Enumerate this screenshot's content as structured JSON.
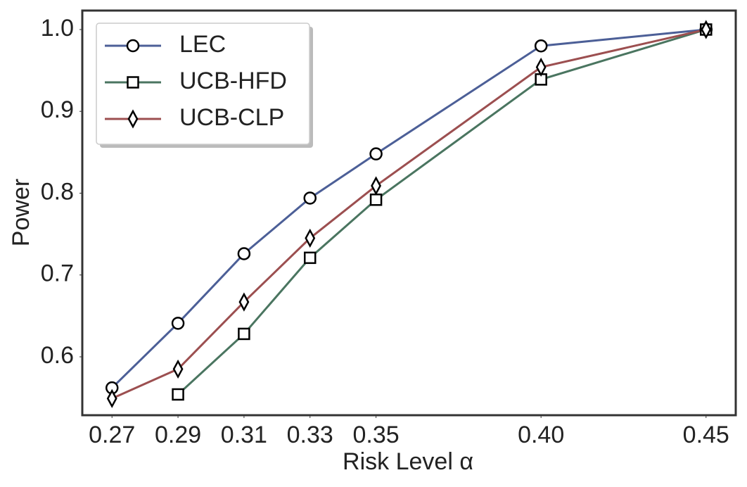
{
  "chart_data": {
    "type": "line",
    "x_label": "Risk Level α",
    "y_label": "Power",
    "x": [
      0.27,
      0.29,
      0.31,
      0.33,
      0.35,
      0.4,
      0.45
    ],
    "xlim": [
      0.261,
      0.459
    ],
    "xticks": [
      0.27,
      0.29,
      0.31,
      0.33,
      0.35,
      {
        "value": 0.4,
        "label": "0.40"
      },
      0.45
    ],
    "ylim": [
      0.5286,
      1.0232
    ],
    "yticks": [
      0.6,
      0.7,
      0.8,
      0.9,
      {
        "value": 1,
        "label": "1.0"
      }
    ],
    "grid": false,
    "legend": "upper left",
    "series": [
      {
        "name": "LEC",
        "color": "#4c5f97",
        "marker": "circle",
        "values": [
          0.562,
          0.641,
          0.726,
          0.794,
          0.848,
          0.98,
          1.0
        ]
      },
      {
        "name": "UCB-HFD",
        "color": "#4a7560",
        "marker": "square",
        "values": [
          null,
          0.554,
          0.628,
          0.721,
          0.792,
          0.939,
          1.0
        ]
      },
      {
        "name": "UCB-CLP",
        "color": "#9c4f50",
        "marker": "diamond",
        "values": [
          0.549,
          0.585,
          0.667,
          0.745,
          0.809,
          0.954,
          1.0
        ]
      }
    ]
  }
}
